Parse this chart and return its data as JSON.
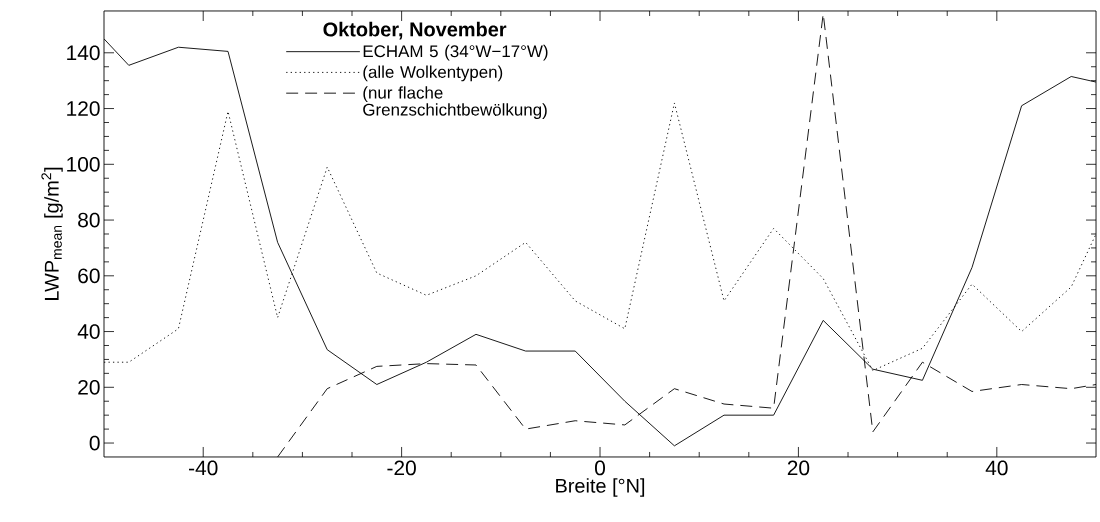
{
  "chart_data": {
    "type": "line",
    "xlabel": "Breite [°N]",
    "ylabel": "LWP$_{mean}$ [g/m$^{2}$]",
    "legend_title": "**Oktober, November**",
    "xlim": [
      -50,
      50
    ],
    "xticks": [
      -40,
      -20,
      0,
      20,
      40
    ],
    "ylim": [
      -5,
      155
    ],
    "yticks": [
      0,
      20,
      40,
      60,
      80,
      100,
      120,
      140
    ],
    "grid": false,
    "legend": "top",
    "x": [
      -50,
      -47.5,
      -42.5,
      -37.5,
      -32.5,
      -27.5,
      -22.5,
      -17.5,
      -12.5,
      -7.5,
      -2.5,
      2.5,
      7.5,
      12.5,
      17.5,
      22.5,
      27.5,
      32.5,
      37.5,
      42.5,
      47.5,
      50
    ],
    "series": [
      {
        "name": "ECHAM 5 (34°W−17°W)",
        "color": "#000000",
        "line_style": "solid",
        "values": [
          145,
          135.5,
          142,
          140.5,
          72,
          33.5,
          21,
          29,
          39,
          33,
          33,
          15,
          -1,
          10,
          10,
          44,
          26.5,
          22.5,
          63,
          121,
          131.5,
          129.5
        ]
      },
      {
        "name": "(alle Wolkentypen)",
        "color": "#000000",
        "line_style": "dotted",
        "values": [
          29,
          29,
          41,
          119,
          45,
          99,
          61,
          53,
          60,
          72,
          51,
          41,
          122,
          51,
          77,
          59,
          26,
          34,
          57,
          40,
          56,
          75
        ]
      },
      {
        "name": "(nur flache Grenzschichtbewölkung)",
        "color": "#000000",
        "line_style": "dashed",
        "values": [
          null,
          null,
          null,
          null,
          -5,
          19.5,
          27.5,
          28.5,
          28,
          5,
          8,
          6.5,
          19.5,
          14,
          12.5,
          154,
          4,
          29,
          18.5,
          21,
          19.5,
          21
        ]
      }
    ]
  }
}
